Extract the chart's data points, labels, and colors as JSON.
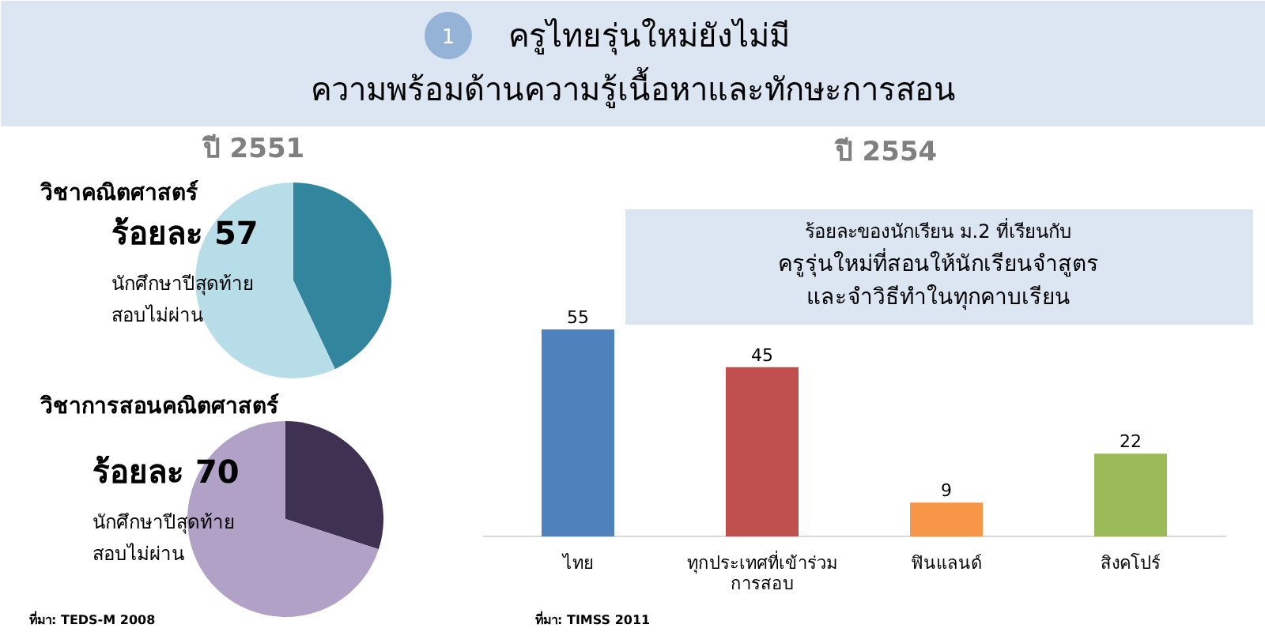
{
  "chart_data": [
    {
      "type": "other",
      "title": "ครูไทยรุ่นใหม่ยังไม่มี\nความพร้อมด้านความรู้เนื้อหาและทักษะการสอน",
      "annotations": [
        "1"
      ]
    },
    {
      "type": "pie",
      "title": "ปี 2551",
      "subtitle": "วิชาคณิตศาสตร์",
      "categories": [
        null,
        null
      ],
      "values": [
        43,
        57
      ],
      "colors": [
        "#31859c",
        "#b7dde8"
      ],
      "annotations": [
        "ร้อยละ 57",
        "นักศึกษาปีสุดท้าย",
        "สอบไม่ผ่าน"
      ]
    },
    {
      "type": "pie",
      "title": "วิชาการสอนคณิตศาสตร์",
      "categories": [
        null,
        null
      ],
      "values": [
        30,
        70
      ],
      "colors": [
        "#3f3151",
        "#b2a1c7"
      ],
      "annotations": [
        "ร้อยละ 70",
        "นักศึกษาปีสุดท้าย",
        "สอบไม่ผ่าน",
        "ที่มา: TEDS-M 2008"
      ]
    },
    {
      "type": "bar",
      "title": "ปี 2554",
      "subtitle": "ร้อยละของนักเรียน ม.2 ที่เรียนกับ\nครูรุ่นใหม่ที่สอนให้นักเรียนจำสูตร\nและจำวิธีทำในทุกคาบเรียน",
      "categories": [
        "ไทย",
        "ทุกประเทศที่เข้าร่วม\nการสอบ",
        "ฟินแลนด์",
        "สิงคโปร์"
      ],
      "values": [
        55,
        45,
        9,
        22
      ],
      "colors": [
        "#4f81bd",
        "#c0504d",
        "#f79646",
        "#9bbb59"
      ],
      "data_labels": true,
      "annotations": [
        "ที่มา: TIMSS 2011"
      ]
    }
  ]
}
